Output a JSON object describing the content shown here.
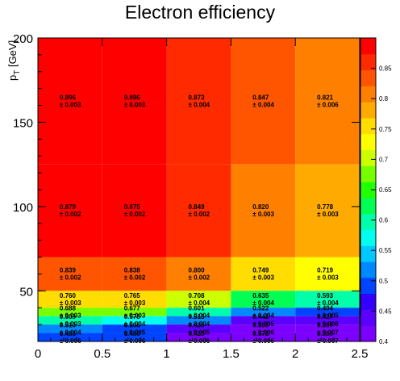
{
  "chart_data": {
    "type": "heatmap",
    "title": "Electron efficiency",
    "ylabel": "p_T [GeV]",
    "xlabel": "",
    "xlim": [
      0,
      2.5
    ],
    "ylim": [
      20,
      200
    ],
    "zlim": [
      0.4,
      0.9
    ],
    "x_edges": [
      0,
      0.5,
      1.0,
      1.5,
      2.0,
      2.5
    ],
    "y_edges": [
      20,
      25,
      30,
      35,
      40,
      50,
      70,
      125,
      200
    ],
    "x_ticks": [
      "0",
      "0.5",
      "1",
      "1.5",
      "2",
      "2.5"
    ],
    "y_ticks": [
      "50",
      "100",
      "150",
      "200"
    ],
    "z_ticks": [
      "0.4",
      "0.45",
      "0.5",
      "0.55",
      "0.6",
      "0.65",
      "0.7",
      "0.75",
      "0.8",
      "0.85"
    ],
    "cells": [
      {
        "row": 7,
        "values": [
          0.896,
          0.896,
          0.873,
          0.847,
          0.821
        ],
        "labels": [
          "0.896",
          "0.896",
          "0.873",
          "0.847",
          "0.821"
        ],
        "errors": [
          "± 0.003",
          "± 0.003",
          "± 0.004",
          "± 0.004",
          "± 0.006"
        ]
      },
      {
        "row": 6,
        "values": [
          0.879,
          0.875,
          0.849,
          0.82,
          0.778
        ],
        "labels": [
          "0.879",
          "0.875",
          "0.849",
          "0.820",
          "0.778"
        ],
        "errors": [
          "± 0.002",
          "± 0.002",
          "± 0.002",
          "± 0.003",
          "± 0.003"
        ]
      },
      {
        "row": 5,
        "values": [
          0.839,
          0.838,
          0.8,
          0.749,
          0.719
        ],
        "labels": [
          "0.839",
          "0.838",
          "0.800",
          "0.749",
          "0.719"
        ],
        "errors": [
          "± 0.002",
          "± 0.002",
          "± 0.002",
          "± 0.003",
          "± 0.003"
        ]
      },
      {
        "row": 4,
        "values": [
          0.76,
          0.765,
          0.708,
          0.635,
          0.593
        ],
        "labels": [
          "0.760",
          "0.765",
          "0.708",
          "0.635",
          "0.593"
        ],
        "errors": [
          "± 0.003",
          "± 0.003",
          "± 0.004",
          "± 0.004",
          "± 0.004"
        ]
      },
      {
        "row": 3,
        "values": [
          0.688,
          0.677,
          0.601,
          0.522,
          0.494
        ],
        "labels": [
          "0.688",
          "0.677",
          "0.601",
          "0.522",
          "0.494"
        ],
        "errors": [
          "± 0.003",
          "± 0.003",
          "± 0.004",
          "± 0.004",
          "± 0.005"
        ]
      },
      {
        "row": 2,
        "values": [
          0.609,
          0.578,
          0.513,
          0.442,
          0.427
        ],
        "labels": [
          "0.609",
          "0.578",
          "0.513",
          "0.442",
          "0.427"
        ],
        "errors": [
          "± 0.003",
          "± 0.004",
          "± 0.004",
          "± 0.005",
          "± 0.006"
        ]
      },
      {
        "row": 1,
        "values": [
          0.51,
          0.505,
          0.436,
          0.385,
          0.397
        ],
        "labels": [
          "0.510",
          "0.505",
          "0.436",
          "0.385",
          "0.397"
        ],
        "errors": [
          "± 0.004",
          "± 0.005",
          "± 0.005",
          "± 0.006",
          "± 0.007"
        ]
      },
      {
        "row": 0,
        "values": [
          0.485,
          0.48,
          0.42,
          0.372,
          0.38
        ],
        "labels": [
          "0.485",
          "0.480",
          "0.420",
          "0.372",
          "0.380"
        ],
        "errors": [
          "± 0.006",
          "± 0.006",
          "± 0.006",
          "± 0.006",
          "± 0.007"
        ]
      }
    ],
    "palette": [
      "#7c00ff",
      "#5a00ff",
      "#3300ff",
      "#0044ff",
      "#0088ff",
      "#00c8ff",
      "#00ffee",
      "#00ffaa",
      "#00ff55",
      "#22ff00",
      "#77ff00",
      "#ccff00",
      "#ffff00",
      "#ffdd00",
      "#ffaa00",
      "#ff8000",
      "#ff5500",
      "#ff2a00",
      "#ff0000"
    ],
    "legend": "right colorbar",
    "grid": false
  }
}
